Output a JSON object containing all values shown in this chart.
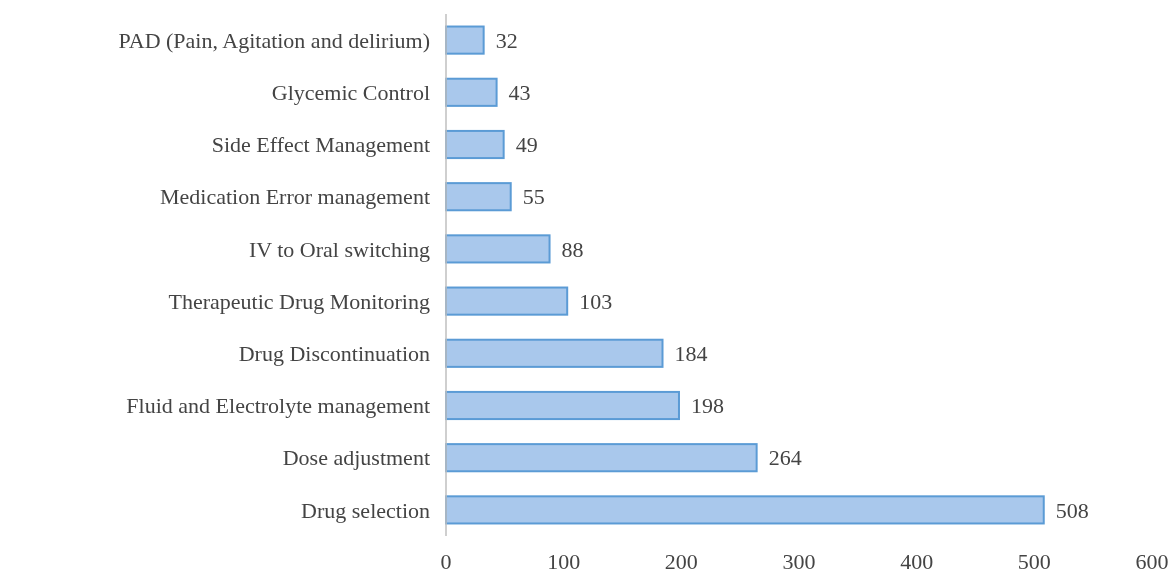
{
  "chart_data": {
    "type": "bar",
    "orientation": "horizontal",
    "categories": [
      "PAD (Pain, Agitation and delirium)",
      "Glycemic Control",
      "Side Effect Management",
      "Medication Error management",
      "IV to Oral switching",
      "Therapeutic Drug Monitoring",
      "Drug Discontinuation",
      "Fluid and Electrolyte management",
      "Dose adjustment",
      "Drug selection"
    ],
    "values": [
      32,
      43,
      49,
      55,
      88,
      103,
      184,
      198,
      264,
      508
    ],
    "color": "#a9c8ec",
    "xlim": [
      0,
      600
    ],
    "xticks": [
      0,
      100,
      200,
      300,
      400,
      500,
      600
    ],
    "data_labels": true,
    "grid": false
  }
}
